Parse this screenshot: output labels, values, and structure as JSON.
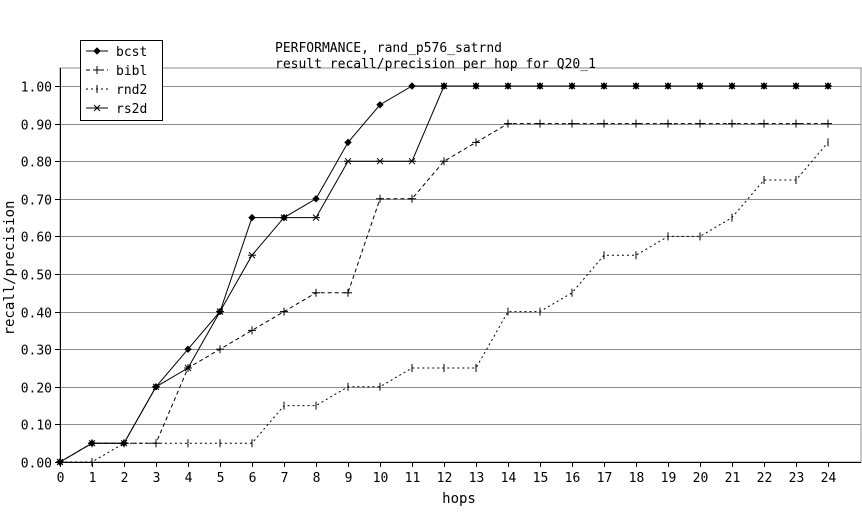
{
  "chart_data": {
    "type": "line",
    "title": "PERFORMANCE, rand_p576_satrnd",
    "subtitle": "result recall/precision per hop for Q20_1",
    "xlabel": "hops",
    "ylabel": "recall/precision",
    "xlim": [
      0,
      24
    ],
    "ylim": [
      0,
      1.0
    ],
    "x_ticks": [
      "0",
      "1",
      "2",
      "3",
      "4",
      "5",
      "6",
      "7",
      "8",
      "9",
      "10",
      "11",
      "12",
      "13",
      "14",
      "15",
      "16",
      "17",
      "18",
      "19",
      "20",
      "21",
      "22",
      "23",
      "24"
    ],
    "y_ticks": [
      "0.00",
      "0.10",
      "0.20",
      "0.30",
      "0.40",
      "0.50",
      "0.60",
      "0.70",
      "0.80",
      "0.90",
      "1.00"
    ],
    "grid": "horizontal",
    "legend_position": "top-left",
    "x": [
      0,
      1,
      2,
      3,
      4,
      5,
      6,
      7,
      8,
      9,
      10,
      11,
      12,
      13,
      14,
      15,
      16,
      17,
      18,
      19,
      20,
      21,
      22,
      23,
      24
    ],
    "series": [
      {
        "name": "bcst",
        "marker": "diamond",
        "dash": "solid",
        "values": [
          0,
          0.05,
          0.05,
          0.2,
          0.3,
          0.4,
          0.65,
          0.65,
          0.7,
          0.85,
          0.95,
          1.0,
          1.0,
          1.0,
          1.0,
          1.0,
          1.0,
          1.0,
          1.0,
          1.0,
          1.0,
          1.0,
          1.0,
          1.0,
          1.0
        ]
      },
      {
        "name": "bibl",
        "marker": "plus",
        "dash": "dashed",
        "values": [
          0,
          0.05,
          0.05,
          0.05,
          0.25,
          0.3,
          0.35,
          0.4,
          0.45,
          0.45,
          0.7,
          0.7,
          0.8,
          0.85,
          0.9,
          0.9,
          0.9,
          0.9,
          0.9,
          0.9,
          0.9,
          0.9,
          0.9,
          0.9,
          0.9
        ]
      },
      {
        "name": "rnd2",
        "marker": "tick",
        "dash": "dotted",
        "values": [
          0,
          0,
          0.05,
          0.05,
          0.05,
          0.05,
          0.05,
          0.15,
          0.15,
          0.2,
          0.2,
          0.25,
          0.25,
          0.25,
          0.4,
          0.4,
          0.45,
          0.55,
          0.55,
          0.6,
          0.6,
          0.65,
          0.75,
          0.75,
          0.85
        ]
      },
      {
        "name": "rs2d",
        "marker": "star",
        "dash": "solid",
        "values": [
          0,
          0.05,
          0.05,
          0.2,
          0.25,
          0.4,
          0.55,
          0.65,
          0.65,
          0.8,
          0.8,
          0.8,
          1.0,
          1.0,
          1.0,
          1.0,
          1.0,
          1.0,
          1.0,
          1.0,
          1.0,
          1.0,
          1.0,
          1.0,
          1.0
        ]
      }
    ]
  }
}
